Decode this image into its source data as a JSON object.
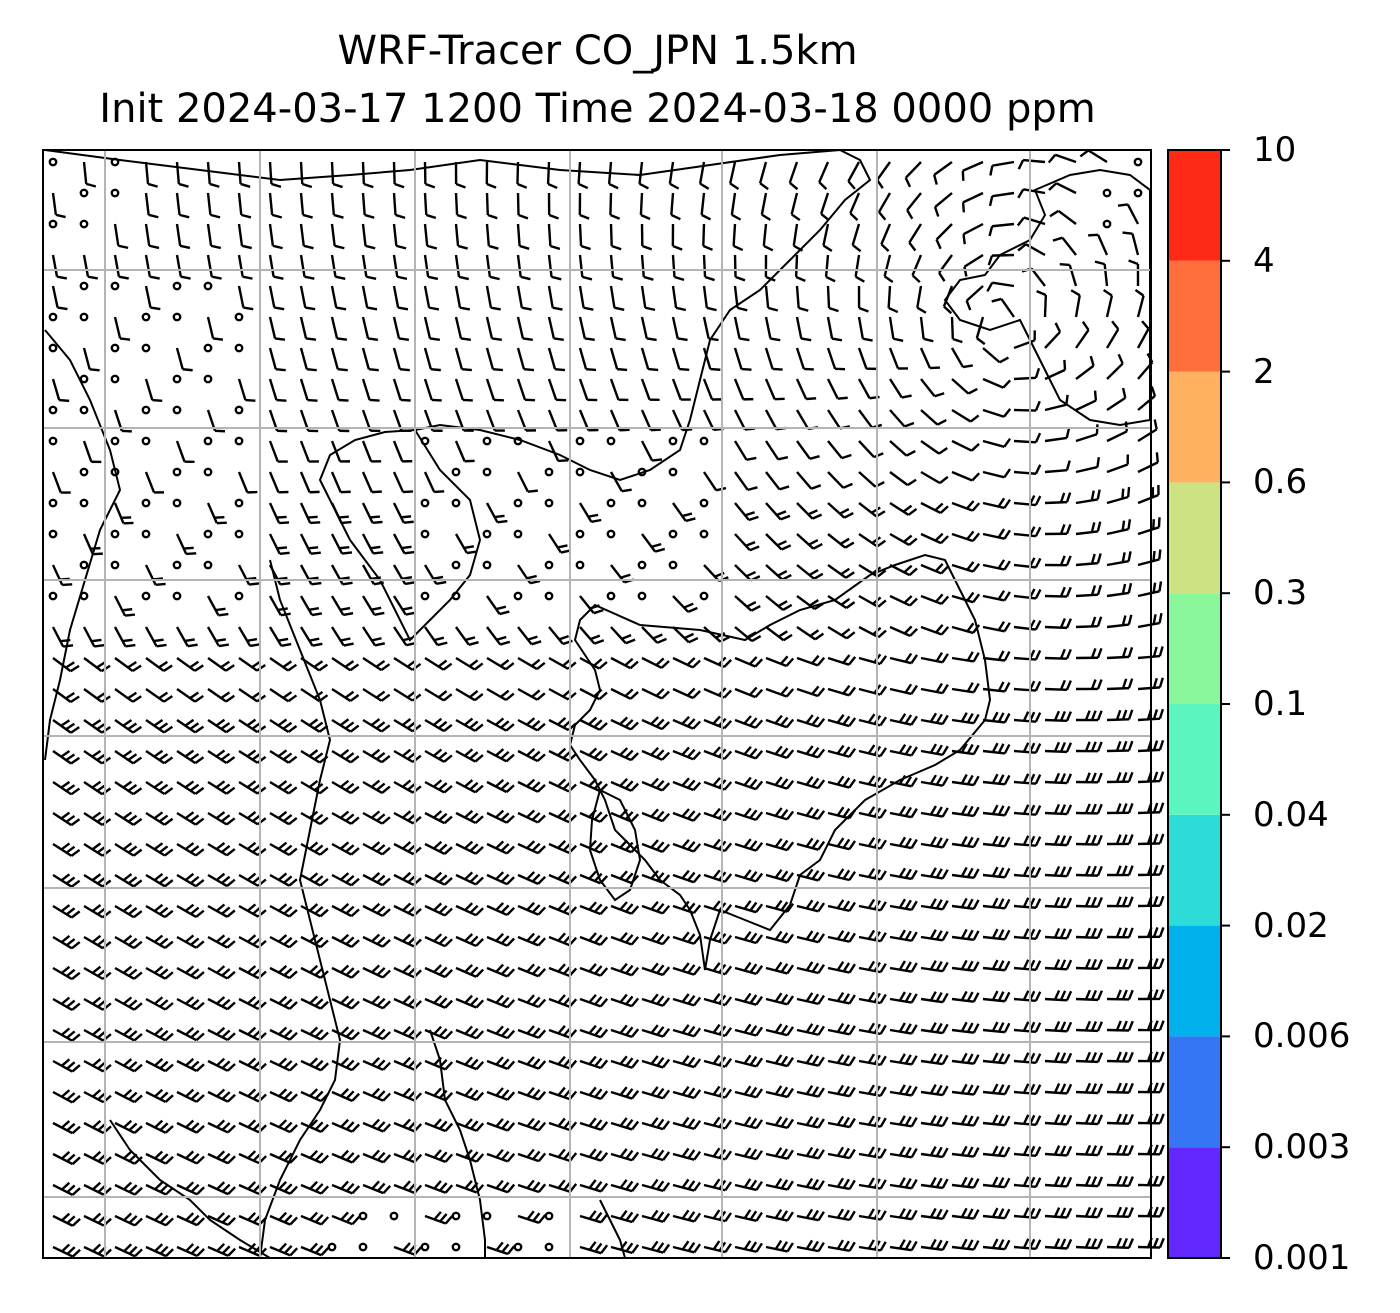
{
  "title": {
    "line1": "WRF-Tracer CO_JPN 1.5km",
    "line2": "Init 2024-03-17 1200 Time 2024-03-18 0000 ppm"
  },
  "colorbar": {
    "tick_labels": [
      "10",
      "4",
      "2",
      "0.6",
      "0.3",
      "0.1",
      "0.04",
      "0.02",
      "0.006",
      "0.003",
      "0.001"
    ],
    "colors_bottom_to_top": [
      "#6328ff",
      "#3676f5",
      "#00b1eb",
      "#2ddcd6",
      "#5af6bd",
      "#8bf79b",
      "#cde283",
      "#ffb061",
      "#ff6f3b",
      "#ff2a16"
    ]
  },
  "map": {
    "wind_barbs": "wind barbs over Japan, rotating around a low over Hokkaido/Sea of Japan; dense westerly flow over Pacific",
    "gridlines": "gray lat/lon graticule",
    "coastline": "black"
  }
}
